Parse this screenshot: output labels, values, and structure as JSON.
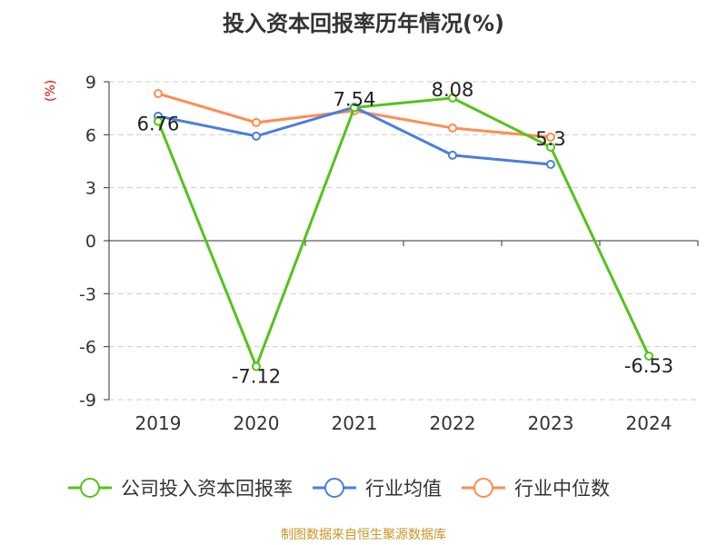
{
  "chart_data": {
    "type": "line",
    "title": "投入资本回报率历年情况(%)",
    "ylabel": "(%)",
    "categories": [
      "2019",
      "2020",
      "2021",
      "2022",
      "2023",
      "2024"
    ],
    "ylim": [
      -9,
      9
    ],
    "yticks": [
      9,
      6,
      3,
      0,
      -3,
      -6,
      -9
    ],
    "grid": true,
    "legend_position": "bottom",
    "series": [
      {
        "name": "公司投入资本回报率",
        "color": "#52c41a",
        "values": [
          6.76,
          -7.12,
          7.54,
          8.08,
          5.3,
          -6.53
        ],
        "labels": [
          "6.76",
          "-7.12",
          "7.54",
          "8.08",
          "5.3",
          "-6.53"
        ]
      },
      {
        "name": "行业均值",
        "color": "#4a7ee0",
        "values": [
          7.05,
          5.92,
          7.56,
          4.84,
          4.32,
          null
        ]
      },
      {
        "name": "行业中位数",
        "color": "#ff8c50",
        "values": [
          8.33,
          6.69,
          7.36,
          6.38,
          5.86,
          null
        ]
      }
    ]
  },
  "source": "制图数据来自恒生聚源数据库"
}
